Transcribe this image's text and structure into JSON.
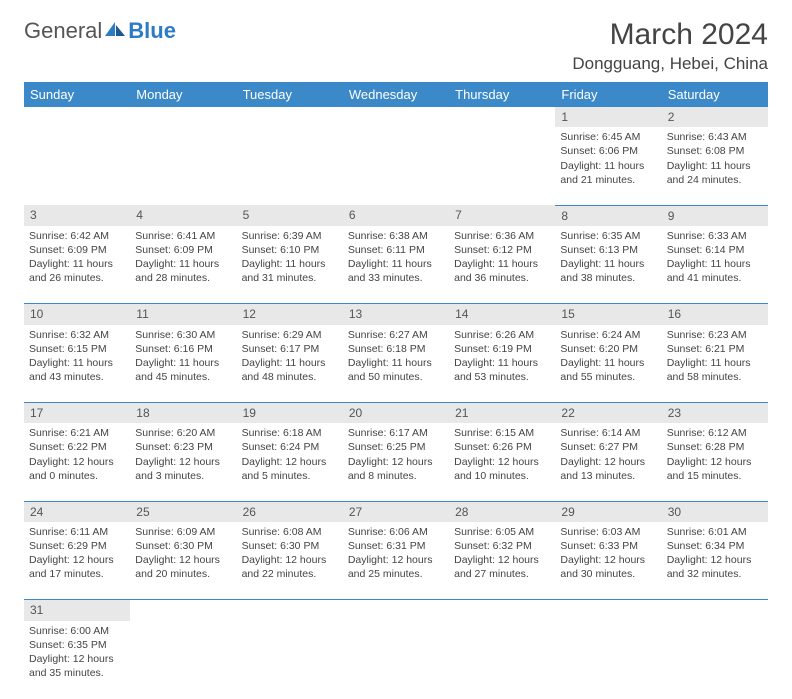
{
  "logo": {
    "text1": "General",
    "text2": "Blue"
  },
  "title": "March 2024",
  "location": "Dongguang, Hebei, China",
  "colors": {
    "header_bg": "#3b89c9",
    "header_fg": "#ffffff",
    "daynum_bg": "#e8e8e8",
    "border": "#3b89c9",
    "text": "#444444"
  },
  "weekdays": [
    "Sunday",
    "Monday",
    "Tuesday",
    "Wednesday",
    "Thursday",
    "Friday",
    "Saturday"
  ],
  "weeks": [
    [
      null,
      null,
      null,
      null,
      null,
      {
        "n": "1",
        "rise": "6:45 AM",
        "set": "6:06 PM",
        "dl": "11 hours and 21 minutes."
      },
      {
        "n": "2",
        "rise": "6:43 AM",
        "set": "6:08 PM",
        "dl": "11 hours and 24 minutes."
      }
    ],
    [
      {
        "n": "3",
        "rise": "6:42 AM",
        "set": "6:09 PM",
        "dl": "11 hours and 26 minutes."
      },
      {
        "n": "4",
        "rise": "6:41 AM",
        "set": "6:09 PM",
        "dl": "11 hours and 28 minutes."
      },
      {
        "n": "5",
        "rise": "6:39 AM",
        "set": "6:10 PM",
        "dl": "11 hours and 31 minutes."
      },
      {
        "n": "6",
        "rise": "6:38 AM",
        "set": "6:11 PM",
        "dl": "11 hours and 33 minutes."
      },
      {
        "n": "7",
        "rise": "6:36 AM",
        "set": "6:12 PM",
        "dl": "11 hours and 36 minutes."
      },
      {
        "n": "8",
        "rise": "6:35 AM",
        "set": "6:13 PM",
        "dl": "11 hours and 38 minutes."
      },
      {
        "n": "9",
        "rise": "6:33 AM",
        "set": "6:14 PM",
        "dl": "11 hours and 41 minutes."
      }
    ],
    [
      {
        "n": "10",
        "rise": "6:32 AM",
        "set": "6:15 PM",
        "dl": "11 hours and 43 minutes."
      },
      {
        "n": "11",
        "rise": "6:30 AM",
        "set": "6:16 PM",
        "dl": "11 hours and 45 minutes."
      },
      {
        "n": "12",
        "rise": "6:29 AM",
        "set": "6:17 PM",
        "dl": "11 hours and 48 minutes."
      },
      {
        "n": "13",
        "rise": "6:27 AM",
        "set": "6:18 PM",
        "dl": "11 hours and 50 minutes."
      },
      {
        "n": "14",
        "rise": "6:26 AM",
        "set": "6:19 PM",
        "dl": "11 hours and 53 minutes."
      },
      {
        "n": "15",
        "rise": "6:24 AM",
        "set": "6:20 PM",
        "dl": "11 hours and 55 minutes."
      },
      {
        "n": "16",
        "rise": "6:23 AM",
        "set": "6:21 PM",
        "dl": "11 hours and 58 minutes."
      }
    ],
    [
      {
        "n": "17",
        "rise": "6:21 AM",
        "set": "6:22 PM",
        "dl": "12 hours and 0 minutes."
      },
      {
        "n": "18",
        "rise": "6:20 AM",
        "set": "6:23 PM",
        "dl": "12 hours and 3 minutes."
      },
      {
        "n": "19",
        "rise": "6:18 AM",
        "set": "6:24 PM",
        "dl": "12 hours and 5 minutes."
      },
      {
        "n": "20",
        "rise": "6:17 AM",
        "set": "6:25 PM",
        "dl": "12 hours and 8 minutes."
      },
      {
        "n": "21",
        "rise": "6:15 AM",
        "set": "6:26 PM",
        "dl": "12 hours and 10 minutes."
      },
      {
        "n": "22",
        "rise": "6:14 AM",
        "set": "6:27 PM",
        "dl": "12 hours and 13 minutes."
      },
      {
        "n": "23",
        "rise": "6:12 AM",
        "set": "6:28 PM",
        "dl": "12 hours and 15 minutes."
      }
    ],
    [
      {
        "n": "24",
        "rise": "6:11 AM",
        "set": "6:29 PM",
        "dl": "12 hours and 17 minutes."
      },
      {
        "n": "25",
        "rise": "6:09 AM",
        "set": "6:30 PM",
        "dl": "12 hours and 20 minutes."
      },
      {
        "n": "26",
        "rise": "6:08 AM",
        "set": "6:30 PM",
        "dl": "12 hours and 22 minutes."
      },
      {
        "n": "27",
        "rise": "6:06 AM",
        "set": "6:31 PM",
        "dl": "12 hours and 25 minutes."
      },
      {
        "n": "28",
        "rise": "6:05 AM",
        "set": "6:32 PM",
        "dl": "12 hours and 27 minutes."
      },
      {
        "n": "29",
        "rise": "6:03 AM",
        "set": "6:33 PM",
        "dl": "12 hours and 30 minutes."
      },
      {
        "n": "30",
        "rise": "6:01 AM",
        "set": "6:34 PM",
        "dl": "12 hours and 32 minutes."
      }
    ],
    [
      {
        "n": "31",
        "rise": "6:00 AM",
        "set": "6:35 PM",
        "dl": "12 hours and 35 minutes."
      },
      null,
      null,
      null,
      null,
      null,
      null
    ]
  ],
  "labels": {
    "sunrise": "Sunrise:",
    "sunset": "Sunset:",
    "daylight": "Daylight:"
  }
}
